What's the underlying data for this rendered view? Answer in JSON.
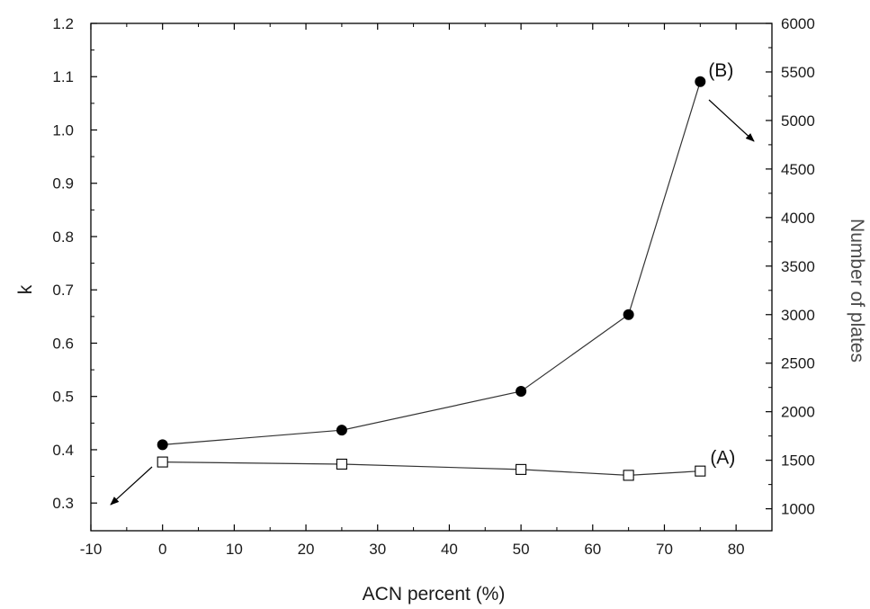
{
  "chart_data": {
    "type": "line",
    "title": "",
    "xlabel": "ACN percent (%)",
    "ylabel": "k",
    "y2label": "Number of plates",
    "xlim": [
      -10,
      85
    ],
    "ylim": [
      0.25,
      1.2
    ],
    "y2lim": [
      800,
      6000
    ],
    "x_ticks": [
      -10,
      0,
      10,
      20,
      30,
      40,
      50,
      60,
      70,
      80
    ],
    "x_tick_labels": [
      "-10",
      "0",
      "10",
      "20",
      "30",
      "40",
      "50",
      "60",
      "70",
      "80"
    ],
    "y_ticks": [
      0.3,
      0.4,
      0.5,
      0.6,
      0.7,
      0.8,
      0.9,
      1.0,
      1.1,
      1.2
    ],
    "y_tick_labels": [
      "0.3",
      "0.4",
      "0.5",
      "0.6",
      "0.7",
      "0.8",
      "0.9",
      "1.0",
      "1.1",
      "1.2"
    ],
    "y2_ticks": [
      1000,
      1500,
      2000,
      2500,
      3000,
      3500,
      4000,
      4500,
      5000,
      5500,
      6000
    ],
    "y2_tick_labels": [
      "1000",
      "1500",
      "2000",
      "2500",
      "3000",
      "3500",
      "4000",
      "4500",
      "5000",
      "5500",
      "6000"
    ],
    "grid": false,
    "series": [
      {
        "name": "(A)",
        "axis": "left",
        "marker": "open-square",
        "x": [
          0,
          25,
          50,
          65,
          75
        ],
        "y": [
          0.377,
          0.373,
          0.363,
          0.352,
          0.36
        ]
      },
      {
        "name": "(B)",
        "axis": "right",
        "marker": "filled-circle",
        "x": [
          0,
          25,
          50,
          65,
          75
        ],
        "y": [
          1660,
          1810,
          2210,
          3000,
          5400
        ]
      }
    ],
    "colors": {
      "line": "#333333",
      "marker_fill_A": "#ffffff",
      "marker_fill_B": "#000000",
      "right_axis_title": "#4a4a4a"
    }
  }
}
